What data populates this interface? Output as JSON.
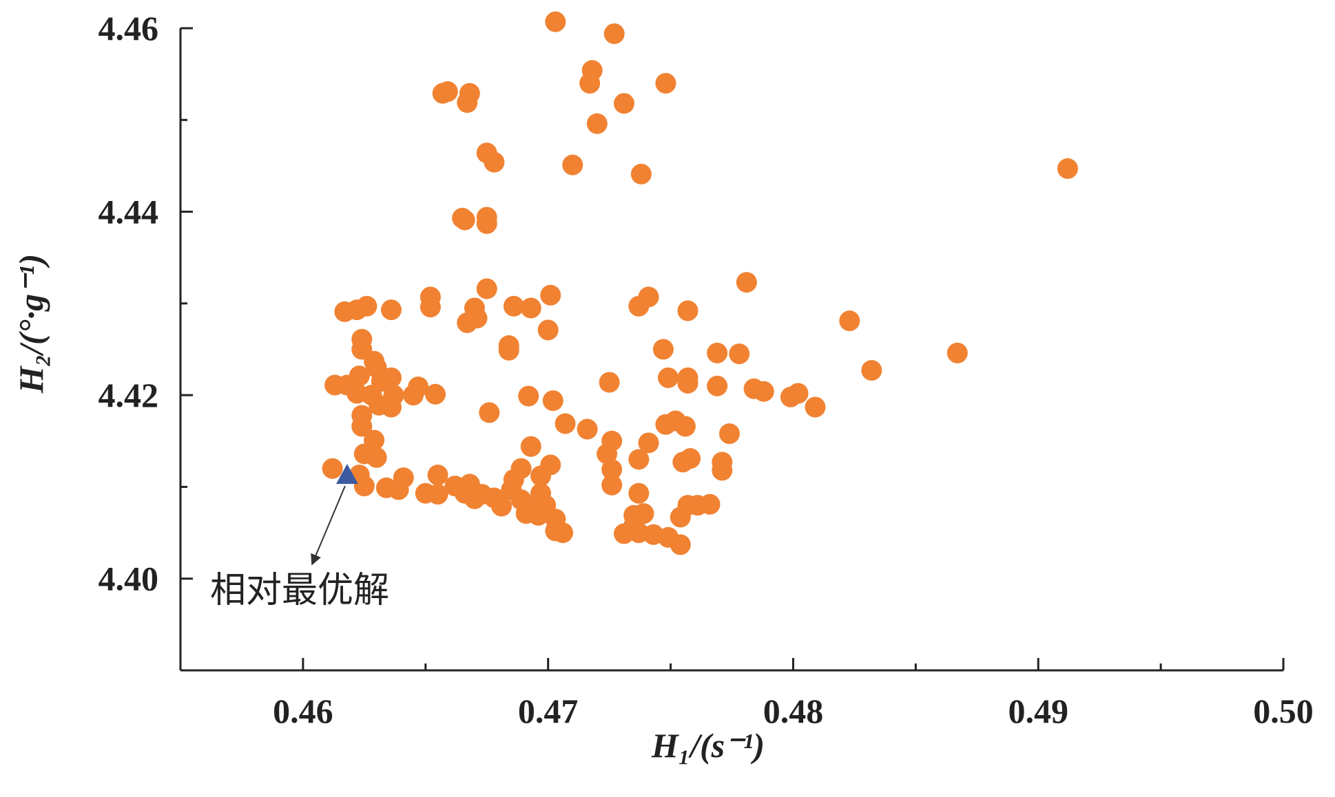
{
  "chart_data": {
    "type": "scatter",
    "xlabel": "H₁/(s⁻¹)",
    "ylabel": "H₂/(°·g⁻¹)",
    "xlim": [
      0.455,
      0.5
    ],
    "ylim": [
      4.39,
      4.46
    ],
    "xticks": [
      0.46,
      0.47,
      0.48,
      0.49,
      {
        "value": 0.5,
        "label": "0.50"
      }
    ],
    "xminorticks": [
      0.465,
      0.475,
      0.485,
      0.495
    ],
    "yticks": [
      {
        "value": 4.4,
        "label": "4.40"
      },
      4.42,
      4.44,
      4.46
    ],
    "yminorticks": [
      4.41,
      4.43,
      4.45
    ],
    "color": "#f08232",
    "x": [
      0.4703,
      0.4727,
      0.4718,
      0.4717,
      0.4748,
      0.4657,
      0.4659,
      0.4668,
      0.4667,
      0.4731,
      0.472,
      0.4675,
      0.4678,
      0.471,
      0.4738,
      0.4912,
      0.4665,
      0.4666,
      0.4675,
      0.4675,
      0.4781,
      0.4675,
      0.4652,
      0.4701,
      0.4741,
      0.4617,
      0.4622,
      0.4626,
      0.4636,
      0.4652,
      0.467,
      0.4686,
      0.4693,
      0.4737,
      0.4757,
      0.4671,
      0.4667,
      0.4823,
      0.47,
      0.4624,
      0.4624,
      0.4684,
      0.4684,
      0.4747,
      0.4769,
      0.4778,
      0.4867,
      0.4629,
      0.463,
      0.4832,
      0.4623,
      0.4632,
      0.4636,
      0.4613,
      0.4618,
      0.4647,
      0.4725,
      0.4749,
      0.4757,
      0.4757,
      0.4769,
      0.4784,
      0.4788,
      0.4799,
      0.4802,
      0.4809,
      0.4622,
      0.4628,
      0.4637,
      0.4645,
      0.4654,
      0.4692,
      0.4702,
      0.4631,
      0.4636,
      0.4624,
      0.4676,
      0.4624,
      0.4707,
      0.4716,
      0.4748,
      0.4752,
      0.4756,
      0.4774,
      0.4629,
      0.4726,
      0.4693,
      0.4741,
      0.4625,
      0.4724,
      0.463,
      0.4758,
      0.4755,
      0.4737,
      0.4771,
      0.4612,
      0.4701,
      0.4689,
      0.4726,
      0.4771,
      0.4623,
      0.4641,
      0.4655,
      0.4686,
      0.4697,
      0.4625,
      0.4634,
      0.4639,
      0.4662,
      0.4668,
      0.4726,
      0.4685,
      0.465,
      0.4655,
      0.4666,
      0.4673,
      0.4697,
      0.4737,
      0.467,
      0.4678,
      0.4689,
      0.4681,
      0.4693,
      0.4699,
      0.4757,
      0.4761,
      0.4766,
      0.4691,
      0.4696,
      0.4703,
      0.4735,
      0.4739,
      0.4754,
      0.4703,
      0.4706,
      0.4735,
      0.4731,
      0.4737,
      0.4743,
      0.4749,
      0.4754
    ],
    "values": [
      4.4607,
      4.4594,
      4.4554,
      4.454,
      4.454,
      4.4529,
      4.4531,
      4.4529,
      4.4519,
      4.4518,
      4.4496,
      4.4464,
      4.4454,
      4.4451,
      4.4441,
      4.4447,
      4.4393,
      4.4391,
      4.4394,
      4.4387,
      4.4323,
      4.4316,
      4.4307,
      4.4309,
      4.4307,
      4.4291,
      4.4293,
      4.4297,
      4.4293,
      4.4296,
      4.4295,
      4.4297,
      4.4295,
      4.4297,
      4.4292,
      4.4284,
      4.4279,
      4.4281,
      4.4271,
      4.4261,
      4.425,
      4.4254,
      4.4249,
      4.425,
      4.4246,
      4.4245,
      4.4246,
      4.4237,
      4.423,
      4.4227,
      4.4221,
      4.4215,
      4.4219,
      4.4211,
      4.4211,
      4.4209,
      4.4214,
      4.4219,
      4.4219,
      4.4213,
      4.421,
      4.4207,
      4.4204,
      4.4198,
      4.4202,
      4.4187,
      4.4202,
      4.42,
      4.42,
      4.42,
      4.4201,
      4.4199,
      4.4194,
      4.4189,
      4.4187,
      4.4178,
      4.4181,
      4.4166,
      4.4169,
      4.4163,
      4.4168,
      4.4172,
      4.4166,
      4.4158,
      4.4151,
      4.415,
      4.4144,
      4.4148,
      4.4136,
      4.4136,
      4.4132,
      4.4131,
      4.4127,
      4.413,
      4.4127,
      4.412,
      4.4124,
      4.412,
      4.4119,
      4.4118,
      4.4113,
      4.411,
      4.4113,
      4.4108,
      4.4112,
      4.4101,
      4.4099,
      4.4097,
      4.4101,
      4.4103,
      4.4102,
      4.4097,
      4.4093,
      4.4092,
      4.4093,
      4.4092,
      4.4093,
      4.4093,
      4.4087,
      4.4088,
      4.4086,
      4.4079,
      4.4079,
      4.408,
      4.408,
      4.408,
      4.4081,
      4.4071,
      4.4069,
      4.4065,
      4.4069,
      4.4071,
      4.4067,
      4.4052,
      4.405,
      4.4058,
      4.4049,
      4.405,
      4.4048,
      4.4045,
      4.4037
    ],
    "highlight": {
      "x": 0.4618,
      "y": 4.4113,
      "color": "#3b5aa0"
    },
    "annotation": "相对最优解"
  }
}
